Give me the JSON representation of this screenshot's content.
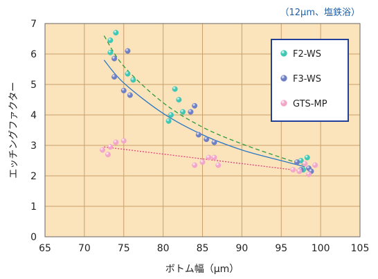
{
  "chart_data": {
    "type": "scatter",
    "title": "",
    "subtitle": "（12μm、塩鉄浴）",
    "xlabel": "ボトム幅（μm）",
    "ylabel": "エッチングファクター",
    "xlim": [
      65,
      105
    ],
    "ylim": [
      0,
      7
    ],
    "xticks": [
      65,
      70,
      75,
      80,
      85,
      90,
      95,
      100,
      105
    ],
    "yticks": [
      0,
      1,
      2,
      3,
      4,
      5,
      6,
      7
    ],
    "grid": true,
    "legend_position": "top-right",
    "plot_background": "#fbe3bb",
    "grid_color": "#c9a06a",
    "series": [
      {
        "name": "F2-WS",
        "color": "#3fc7b4",
        "points": [
          [
            74.0,
            6.7
          ],
          [
            73.3,
            6.45
          ],
          [
            73.3,
            6.05
          ],
          [
            75.5,
            5.35
          ],
          [
            76.2,
            5.15
          ],
          [
            81.5,
            4.85
          ],
          [
            82.0,
            4.5
          ],
          [
            82.5,
            4.1
          ],
          [
            81.0,
            4.0
          ],
          [
            80.7,
            3.8
          ],
          [
            97.5,
            2.5
          ],
          [
            98.3,
            2.6
          ],
          [
            97.8,
            2.2
          ]
        ],
        "trend": {
          "style": "dashed",
          "color": "#2f9a3a",
          "points": [
            [
              72.5,
              6.6
            ],
            [
              75,
              5.6
            ],
            [
              80,
              4.4
            ],
            [
              85,
              3.6
            ],
            [
              90,
              3.05
            ],
            [
              95,
              2.6
            ],
            [
              98,
              2.35
            ]
          ]
        }
      },
      {
        "name": "F3-WS",
        "color": "#6f7fc4",
        "points": [
          [
            75.5,
            6.1
          ],
          [
            73.8,
            5.85
          ],
          [
            73.8,
            5.25
          ],
          [
            75.0,
            4.8
          ],
          [
            75.8,
            4.65
          ],
          [
            84.0,
            4.3
          ],
          [
            83.5,
            4.1
          ],
          [
            84.5,
            3.35
          ],
          [
            85.5,
            3.2
          ],
          [
            86.5,
            3.1
          ],
          [
            97.0,
            2.45
          ],
          [
            98.5,
            2.25
          ],
          [
            97.5,
            2.2
          ],
          [
            98.8,
            2.15
          ]
        ],
        "trend": {
          "style": "solid",
          "color": "#2a78c2",
          "points": [
            [
              72.5,
              5.8
            ],
            [
              75,
              5.05
            ],
            [
              80,
              4.05
            ],
            [
              85,
              3.35
            ],
            [
              90,
              2.85
            ],
            [
              95,
              2.5
            ],
            [
              98,
              2.3
            ]
          ]
        }
      },
      {
        "name": "GTS-MP",
        "color": "#f2a6c8",
        "points": [
          [
            72.3,
            2.85
          ],
          [
            73.0,
            2.7
          ],
          [
            73.3,
            2.95
          ],
          [
            74.0,
            3.1
          ],
          [
            75.0,
            3.15
          ],
          [
            84.0,
            2.35
          ],
          [
            85.0,
            2.45
          ],
          [
            85.8,
            2.6
          ],
          [
            86.5,
            2.6
          ],
          [
            87.0,
            2.35
          ],
          [
            96.5,
            2.2
          ],
          [
            97.3,
            2.15
          ],
          [
            98.5,
            2.05
          ],
          [
            99.3,
            2.35
          ],
          [
            98.0,
            2.4
          ]
        ],
        "trend": {
          "style": "dotted",
          "color": "#e0407a",
          "points": [
            [
              72.5,
              2.95
            ],
            [
              98,
              2.15
            ]
          ]
        }
      }
    ]
  }
}
